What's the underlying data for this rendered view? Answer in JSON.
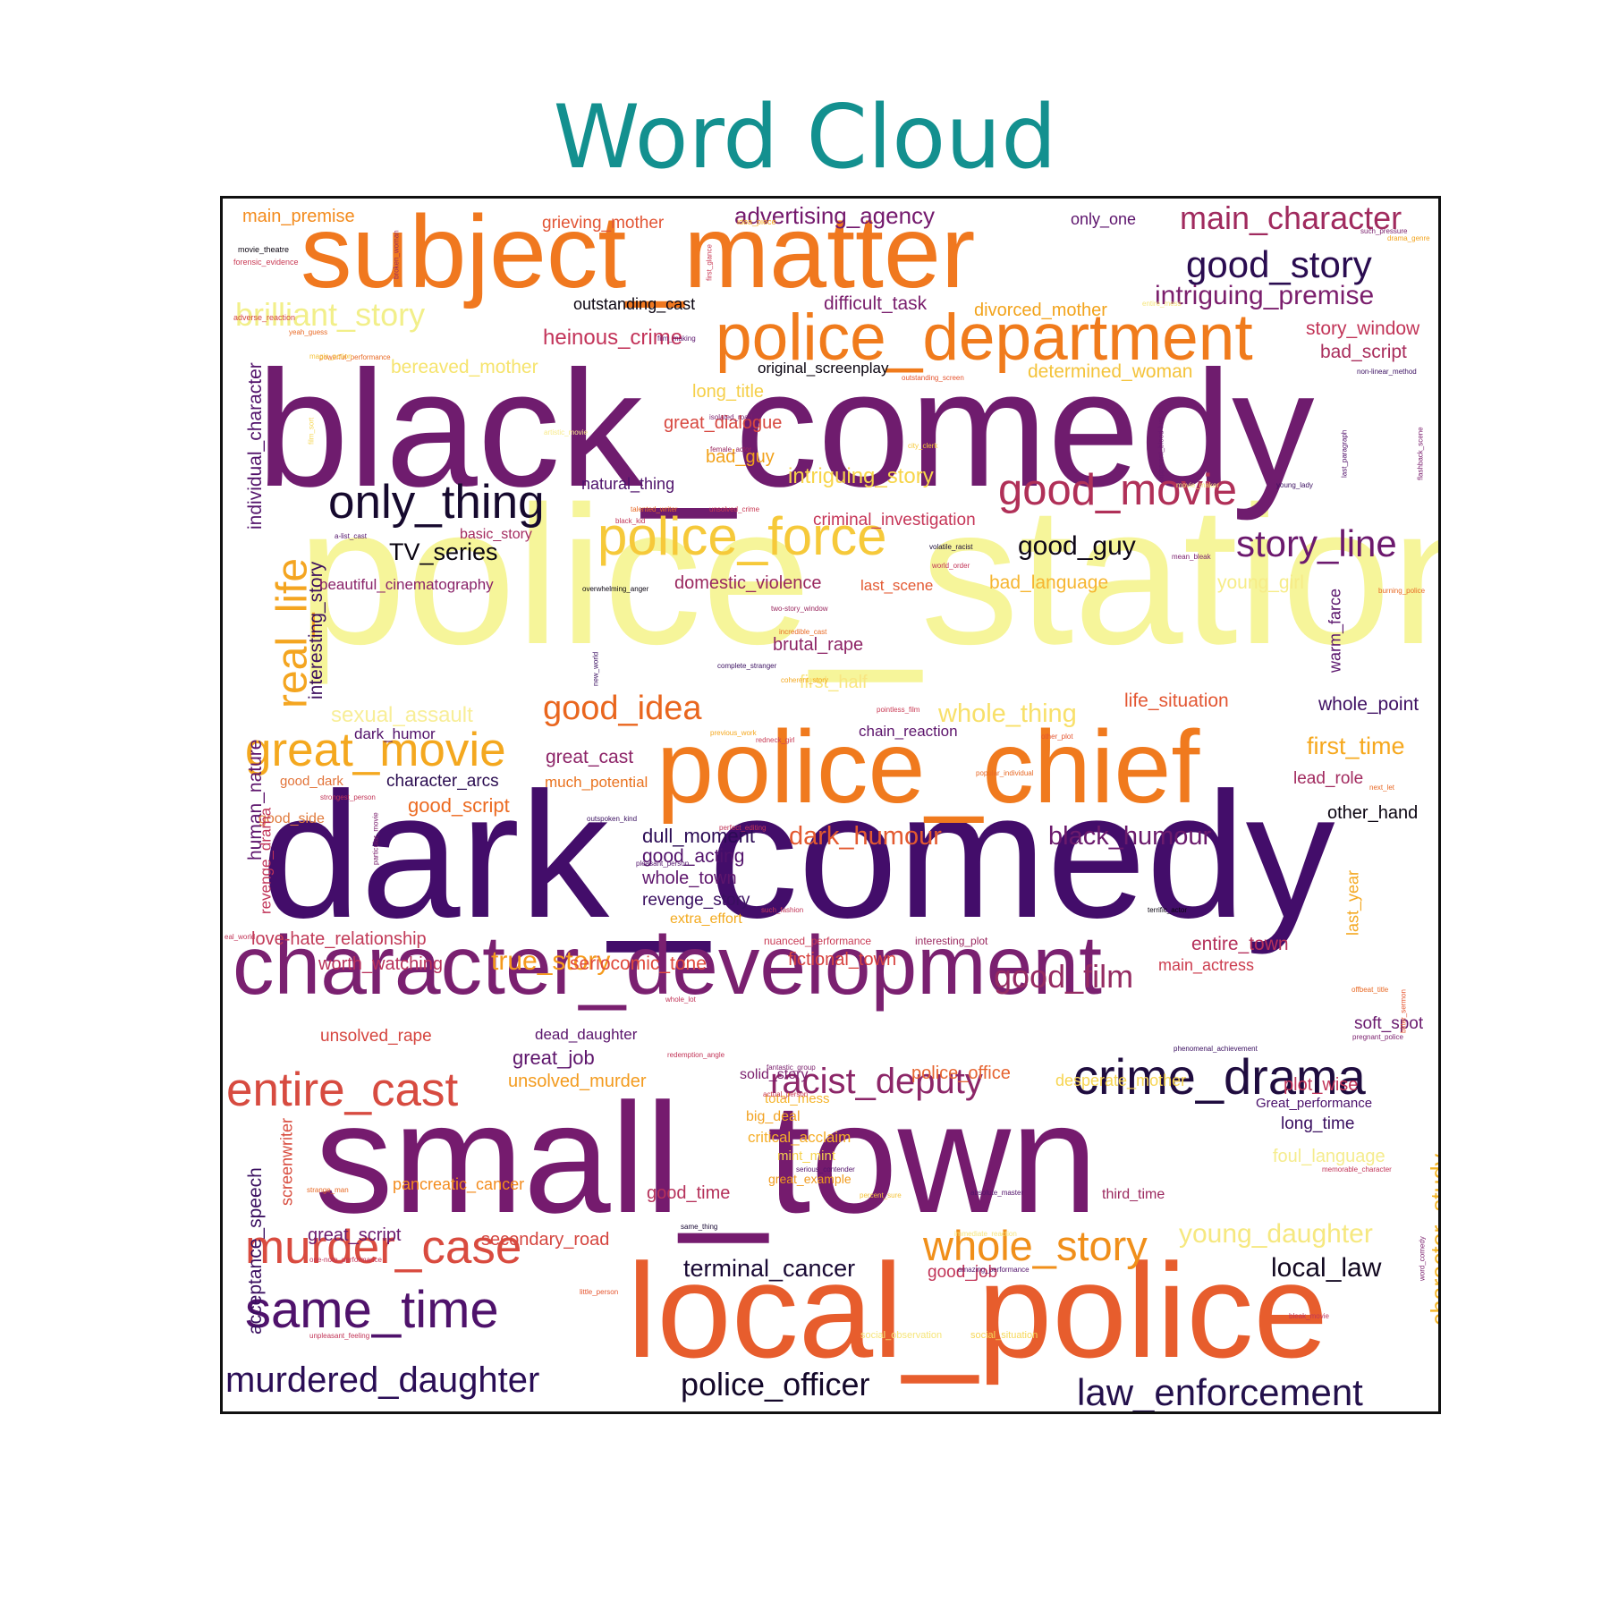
{
  "chart_data": {
    "type": "wordcloud",
    "title": "Word Cloud",
    "colormap": "inferno",
    "background": "#ffffff",
    "words": [
      {
        "text": "police_station",
        "color": "#f6f59a"
      },
      {
        "text": "dark_comedy",
        "color": "#430d6a"
      },
      {
        "text": "black_comedy",
        "color": "#6f1c6e"
      },
      {
        "text": "small_town",
        "color": "#751b6e"
      },
      {
        "text": "local_police",
        "color": "#e75d2d"
      },
      {
        "text": "subject_matter",
        "color": "#f0781f"
      },
      {
        "text": "police_chief",
        "color": "#f07a1e"
      },
      {
        "text": "character_development",
        "color": "#7a2070"
      },
      {
        "text": "police_department",
        "color": "#f07b1c"
      },
      {
        "text": "good_movie",
        "color": "#b03058"
      },
      {
        "text": "only_thing",
        "color": "#16092e"
      },
      {
        "text": "police_force",
        "color": "#f6c93a"
      },
      {
        "text": "great_movie",
        "color": "#f4a81f"
      },
      {
        "text": "crime_drama",
        "color": "#1f0c3f"
      },
      {
        "text": "entire_cast",
        "color": "#d74b40"
      },
      {
        "text": "murder_case",
        "color": "#d94b3f"
      },
      {
        "text": "whole_story",
        "color": "#f08f1a"
      },
      {
        "text": "same_time",
        "color": "#4f126b"
      },
      {
        "text": "racist_deputy",
        "color": "#8c2668"
      },
      {
        "text": "good_story",
        "color": "#2a0c50"
      },
      {
        "text": "story_line",
        "color": "#6c196e"
      },
      {
        "text": "real_life",
        "color": "#f4a520"
      },
      {
        "text": "brilliant_story",
        "color": "#f2ef8a"
      },
      {
        "text": "good_film",
        "color": "#952b62"
      },
      {
        "text": "main_character",
        "color": "#a02a5e"
      },
      {
        "text": "intriguing_premise",
        "color": "#7b1f6d"
      },
      {
        "text": "good_idea",
        "color": "#e9661e"
      },
      {
        "text": "law_enforcement",
        "color": "#23104b"
      },
      {
        "text": "murdered_daughter",
        "color": "#2a0d55"
      },
      {
        "text": "police_officer",
        "color": "#14082a"
      },
      {
        "text": "terminal_cancer",
        "color": "#1a0a35"
      },
      {
        "text": "local_law",
        "color": "#120820"
      },
      {
        "text": "young_daughter",
        "color": "#f6e880"
      },
      {
        "text": "true_story",
        "color": "#f59a1d"
      },
      {
        "text": "dark_humour",
        "color": "#e35a30"
      },
      {
        "text": "black_humour",
        "color": "#6a1a6c"
      },
      {
        "text": "whole_thing",
        "color": "#f8e06a"
      },
      {
        "text": "heinous_crime",
        "color": "#c3345a"
      },
      {
        "text": "advertising_agency",
        "color": "#74196d"
      },
      {
        "text": "intriguing_story",
        "color": "#f7d54b"
      },
      {
        "text": "good_guy",
        "color": "#0e0616"
      },
      {
        "text": "TV_series",
        "color": "#0a0410"
      },
      {
        "text": "first_time",
        "color": "#f6a81e"
      },
      {
        "text": "character_study",
        "color": "#f4b424"
      },
      {
        "text": "acceptance_speech",
        "color": "#3a0f60"
      },
      {
        "text": "individual_character",
        "color": "#52126b"
      },
      {
        "text": "interesting_story",
        "color": "#3c0e5e"
      },
      {
        "text": "human_nature",
        "color": "#5d146c"
      },
      {
        "text": "bereaved_mother",
        "color": "#f6e46e"
      },
      {
        "text": "determined_woman",
        "color": "#f4c33b"
      },
      {
        "text": "divorced_mother",
        "color": "#f2a31c"
      },
      {
        "text": "story_window",
        "color": "#c23558"
      },
      {
        "text": "bad_script",
        "color": "#a92d5c"
      },
      {
        "text": "difficult_task",
        "color": "#7a1f6d"
      },
      {
        "text": "grieving_mother",
        "color": "#e25535"
      },
      {
        "text": "outstanding_cast",
        "color": "#0a0410"
      },
      {
        "text": "original_screenplay",
        "color": "#0a0410"
      },
      {
        "text": "main_premise",
        "color": "#f38b1d"
      },
      {
        "text": "only_one",
        "color": "#5c136c"
      },
      {
        "text": "long_title",
        "color": "#f5cf48"
      },
      {
        "text": "great_dialogue",
        "color": "#d7473f"
      },
      {
        "text": "bad_guy",
        "color": "#f2a21b"
      },
      {
        "text": "natural_thing",
        "color": "#4e126b"
      },
      {
        "text": "criminal_investigation",
        "color": "#c63658"
      },
      {
        "text": "basic_story",
        "color": "#a32b5f"
      },
      {
        "text": "beautiful_cinematography",
        "color": "#8a2369"
      },
      {
        "text": "domestic_violence",
        "color": "#9a285f"
      },
      {
        "text": "last_scene",
        "color": "#e35932"
      },
      {
        "text": "bad_language",
        "color": "#f6b530"
      },
      {
        "text": "young_girl",
        "color": "#f6ec88"
      },
      {
        "text": "warm_farce",
        "color": "#5a146c"
      },
      {
        "text": "brutal_rape",
        "color": "#8e2566"
      },
      {
        "text": "first_half",
        "color": "#f8e682"
      },
      {
        "text": "sexual_assault",
        "color": "#f8ee98"
      },
      {
        "text": "life_situation",
        "color": "#e35632"
      },
      {
        "text": "whole_point",
        "color": "#3e0f62"
      },
      {
        "text": "dark_humor",
        "color": "#52126b"
      },
      {
        "text": "great_cast",
        "color": "#8d2468"
      },
      {
        "text": "chain_reaction",
        "color": "#5c146c"
      },
      {
        "text": "character_arcs",
        "color": "#2a0c50"
      },
      {
        "text": "much_potential",
        "color": "#e97320"
      },
      {
        "text": "good_script",
        "color": "#ec6b22"
      },
      {
        "text": "lead_role",
        "color": "#a22a5f"
      },
      {
        "text": "other_hand",
        "color": "#0a0410"
      },
      {
        "text": "good_dark",
        "color": "#e2743a"
      },
      {
        "text": "good_side",
        "color": "#e07a3c"
      },
      {
        "text": "dull_moment",
        "color": "#2c0c55"
      },
      {
        "text": "good_acting",
        "color": "#52126b"
      },
      {
        "text": "whole_town",
        "color": "#5e156c"
      },
      {
        "text": "revenge_story",
        "color": "#3a0f60"
      },
      {
        "text": "extra_effort",
        "color": "#f3aa1e"
      },
      {
        "text": "love-hate_relationship",
        "color": "#c23a58"
      },
      {
        "text": "worth_watching",
        "color": "#b8315b"
      },
      {
        "text": "seriocomic_tone",
        "color": "#df4a3d"
      },
      {
        "text": "fictional_town",
        "color": "#d74340"
      },
      {
        "text": "entire_town",
        "color": "#b5305b"
      },
      {
        "text": "main_actress",
        "color": "#cc3d4f"
      },
      {
        "text": "last_year",
        "color": "#f4a822"
      },
      {
        "text": "revenge_drama",
        "color": "#c13458"
      },
      {
        "text": "unsolved_rape",
        "color": "#d5453f"
      },
      {
        "text": "dead_daughter",
        "color": "#5a146c"
      },
      {
        "text": "great_job",
        "color": "#5e156c"
      },
      {
        "text": "unsolved_murder",
        "color": "#f39b1e"
      },
      {
        "text": "solid_story",
        "color": "#7a1f6d"
      },
      {
        "text": "police_office",
        "color": "#e66430"
      },
      {
        "text": "desperate_mother",
        "color": "#f7d552"
      },
      {
        "text": "plot_wise",
        "color": "#c13458"
      },
      {
        "text": "Great_performance",
        "color": "#4a116b"
      },
      {
        "text": "long_time",
        "color": "#3a0f60"
      },
      {
        "text": "soft_spot",
        "color": "#6a196e"
      },
      {
        "text": "total_mess",
        "color": "#f5b52e"
      },
      {
        "text": "big_deal",
        "color": "#f2a324"
      },
      {
        "text": "critical_acclaim",
        "color": "#f5ae2a"
      },
      {
        "text": "mint_mint",
        "color": "#f7d34e"
      },
      {
        "text": "foul_language",
        "color": "#f5ec8e"
      },
      {
        "text": "screenwriter",
        "color": "#d84c3e"
      },
      {
        "text": "pancreatic_cancer",
        "color": "#f38b1d"
      },
      {
        "text": "good_time",
        "color": "#b5315a"
      },
      {
        "text": "great_example",
        "color": "#f09a1c"
      },
      {
        "text": "third_time",
        "color": "#9b295f"
      },
      {
        "text": "great_script",
        "color": "#6a196e"
      },
      {
        "text": "secondary_road",
        "color": "#d5453f"
      },
      {
        "text": "good_job",
        "color": "#c23558"
      },
      {
        "text": "movie_theatre",
        "color": "#0a0410"
      },
      {
        "text": "forensic_evidence",
        "color": "#c93b55"
      },
      {
        "text": "adverse_reaction",
        "color": "#d5453f"
      },
      {
        "text": "broken_woman",
        "color": "#9a285f"
      },
      {
        "text": "first_glance",
        "color": "#c93b55"
      },
      {
        "text": "idea_piece",
        "color": "#f4a81f"
      },
      {
        "text": "such_pressure",
        "color": "#7a1f6d"
      },
      {
        "text": "drama_genre",
        "color": "#f2a31c"
      },
      {
        "text": "entire_mess",
        "color": "#f6e57a"
      },
      {
        "text": "yeah_guess",
        "color": "#e96a25"
      },
      {
        "text": "powerful_performance",
        "color": "#e86a26"
      },
      {
        "text": "magic_potion",
        "color": "#f4c33b"
      },
      {
        "text": "film_making",
        "color": "#5a146c"
      },
      {
        "text": "outstanding_screen",
        "color": "#e5552f"
      },
      {
        "text": "non-linear_method",
        "color": "#3a0f60"
      },
      {
        "text": "film_sort",
        "color": "#f6d85a"
      },
      {
        "text": "artistic_movie",
        "color": "#f8ea8a"
      },
      {
        "text": "isolated_road",
        "color": "#7a1f6d"
      },
      {
        "text": "female_actor",
        "color": "#9a285f"
      },
      {
        "text": "city_clerk",
        "color": "#f6c93a"
      },
      {
        "text": "apparent_blood-lust",
        "color": "#6a196e"
      },
      {
        "text": "flashback_scene",
        "color": "#7a1f6d"
      },
      {
        "text": "last_paragraph",
        "color": "#52126b"
      },
      {
        "text": "movie_maker",
        "color": "#f6e57a"
      },
      {
        "text": "young_lady",
        "color": "#3a0f60"
      },
      {
        "text": "talented_writer",
        "color": "#e86a26"
      },
      {
        "text": "black_kid",
        "color": "#c23558"
      },
      {
        "text": "unsolved_crime",
        "color": "#c93b55"
      },
      {
        "text": "a-list_cast",
        "color": "#52126b"
      },
      {
        "text": "volatile_racist",
        "color": "#1a0a35"
      },
      {
        "text": "world_order",
        "color": "#c23558"
      },
      {
        "text": "mean_bleak",
        "color": "#7a1f6d"
      },
      {
        "text": "overwhelming_anger",
        "color": "#0a0410"
      },
      {
        "text": "two-story_window",
        "color": "#9a285f"
      },
      {
        "text": "burning_police",
        "color": "#e86a26"
      },
      {
        "text": "incredible_cast",
        "color": "#e86a26"
      },
      {
        "text": "new_world",
        "color": "#3a0f60"
      },
      {
        "text": "complete_stranger",
        "color": "#3a0f60"
      },
      {
        "text": "coherent_story",
        "color": "#f4a81f"
      },
      {
        "text": "pointless_film",
        "color": "#c93b55"
      },
      {
        "text": "previous_work",
        "color": "#f4a81f"
      },
      {
        "text": "redneck_girl",
        "color": "#c93b55"
      },
      {
        "text": "other_plot",
        "color": "#e5552f"
      },
      {
        "text": "popular_individual",
        "color": "#e86a26"
      },
      {
        "text": "next_let",
        "color": "#e86a26"
      },
      {
        "text": "strongest_person",
        "color": "#c23558"
      },
      {
        "text": "particular_movie",
        "color": "#7a1f6d"
      },
      {
        "text": "outspoken_kind",
        "color": "#3a0f60"
      },
      {
        "text": "perfect_editing",
        "color": "#c23558"
      },
      {
        "text": "pleasant_person",
        "color": "#52126b"
      },
      {
        "text": "such_fashion",
        "color": "#c23558"
      },
      {
        "text": "terrific_actor",
        "color": "#0a0410"
      },
      {
        "text": "eal_world",
        "color": "#c23558"
      },
      {
        "text": "nuanced_performance",
        "color": "#c93b55"
      },
      {
        "text": "interesting_plot",
        "color": "#9a285f"
      },
      {
        "text": "offbeat_title",
        "color": "#e86a26"
      },
      {
        "text": "bitter_sermon",
        "color": "#e5552f"
      },
      {
        "text": "whole_lot",
        "color": "#c23558"
      },
      {
        "text": "phenomenal_achievement",
        "color": "#3a0f60"
      },
      {
        "text": "pregnant_police",
        "color": "#7a1f6d"
      },
      {
        "text": "redemption_angle",
        "color": "#c23558"
      },
      {
        "text": "fantastic_group",
        "color": "#7a1f6d"
      },
      {
        "text": "actual_person",
        "color": "#c93b55"
      },
      {
        "text": "serious_contender",
        "color": "#52126b"
      },
      {
        "text": "memorable_character",
        "color": "#c23558"
      },
      {
        "text": "strange_man",
        "color": "#e86a26"
      },
      {
        "text": "percent_sure",
        "color": "#f4c33b"
      },
      {
        "text": "absolute_master",
        "color": "#52126b"
      },
      {
        "text": "same_thing",
        "color": "#1a0a35"
      },
      {
        "text": "immediate_reaction",
        "color": "#f6e57a"
      },
      {
        "text": "word_comedy",
        "color": "#7a1f6d"
      },
      {
        "text": "one-note_performance",
        "color": "#c23558"
      },
      {
        "text": "amazing_performance",
        "color": "#52126b"
      },
      {
        "text": "little_person",
        "color": "#e5552f"
      },
      {
        "text": "bleak_movie",
        "color": "#c23558"
      },
      {
        "text": "unpleasant_feeling",
        "color": "#c23558"
      },
      {
        "text": "social_observation",
        "color": "#f6e57a"
      },
      {
        "text": "social_situation",
        "color": "#f6d85a"
      }
    ]
  }
}
